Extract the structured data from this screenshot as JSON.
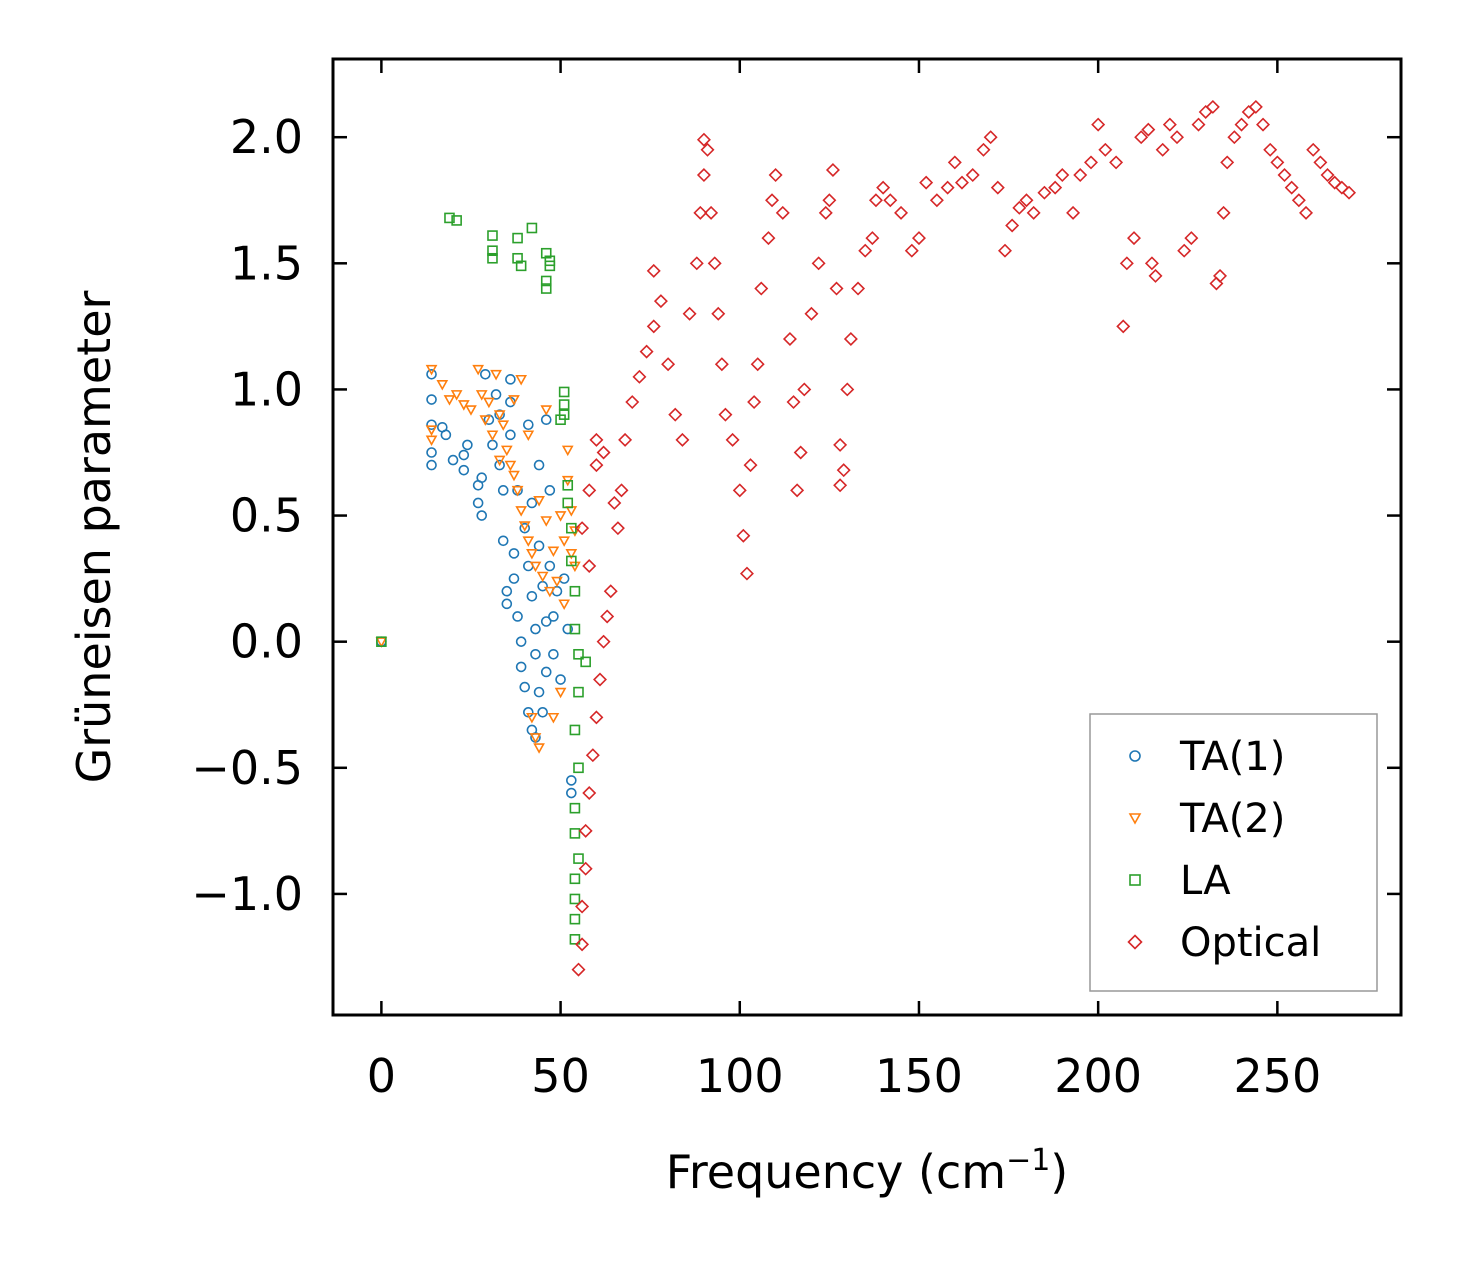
{
  "chart_data": {
    "type": "scatter",
    "title": "",
    "xlabel": "Frequency (cm",
    "xlabel_sup": "−1",
    "xlabel_close": ")",
    "ylabel": "Grüneisen parameter",
    "xlim": [
      -13.5,
      284.5
    ],
    "ylim": [
      -1.48,
      2.31
    ],
    "xticks": [
      0,
      50,
      100,
      150,
      200,
      250
    ],
    "xtick_labels": [
      "0",
      "50",
      "100",
      "150",
      "200",
      "250"
    ],
    "yticks": [
      -1.0,
      -0.5,
      0.0,
      0.5,
      1.0,
      1.5,
      2.0
    ],
    "ytick_labels": [
      "−1.0",
      "−0.5",
      "0.0",
      "0.5",
      "1.0",
      "1.5",
      "2.0"
    ],
    "grid": false,
    "legend_position": "lower-right",
    "series": [
      {
        "name": "TA(1)",
        "marker": "circle",
        "color": "#1f77b4",
        "points": [
          [
            0,
            0
          ],
          [
            14,
            1.06
          ],
          [
            14,
            0.96
          ],
          [
            14,
            0.86
          ],
          [
            14,
            0.75
          ],
          [
            14,
            0.7
          ],
          [
            17,
            0.85
          ],
          [
            18,
            0.82
          ],
          [
            20,
            0.72
          ],
          [
            23,
            0.74
          ],
          [
            23,
            0.68
          ],
          [
            24,
            0.78
          ],
          [
            27,
            0.62
          ],
          [
            27,
            0.55
          ],
          [
            28,
            0.5
          ],
          [
            28,
            0.65
          ],
          [
            29,
            1.06
          ],
          [
            30,
            0.88
          ],
          [
            31,
            0.78
          ],
          [
            32,
            0.98
          ],
          [
            33,
            0.9
          ],
          [
            33,
            0.7
          ],
          [
            34,
            0.6
          ],
          [
            34,
            0.4
          ],
          [
            35,
            0.2
          ],
          [
            35,
            0.15
          ],
          [
            36,
            1.04
          ],
          [
            36,
            0.95
          ],
          [
            36,
            0.82
          ],
          [
            37,
            0.35
          ],
          [
            37,
            0.25
          ],
          [
            38,
            0.6
          ],
          [
            38,
            0.1
          ],
          [
            39,
            0.0
          ],
          [
            39,
            -0.1
          ],
          [
            40,
            0.45
          ],
          [
            40,
            -0.18
          ],
          [
            41,
            0.86
          ],
          [
            41,
            0.3
          ],
          [
            41,
            -0.28
          ],
          [
            42,
            0.55
          ],
          [
            42,
            0.18
          ],
          [
            42,
            -0.35
          ],
          [
            43,
            0.05
          ],
          [
            43,
            -0.05
          ],
          [
            43,
            -0.38
          ],
          [
            44,
            0.7
          ],
          [
            44,
            0.38
          ],
          [
            44,
            -0.2
          ],
          [
            45,
            0.22
          ],
          [
            45,
            -0.28
          ],
          [
            46,
            0.88
          ],
          [
            46,
            0.08
          ],
          [
            46,
            -0.12
          ],
          [
            47,
            0.6
          ],
          [
            47,
            0.3
          ],
          [
            48,
            0.1
          ],
          [
            48,
            -0.05
          ],
          [
            49,
            0.2
          ],
          [
            50,
            -0.15
          ],
          [
            51,
            0.25
          ],
          [
            52,
            0.05
          ],
          [
            53,
            -0.55
          ],
          [
            53,
            -0.6
          ]
        ]
      },
      {
        "name": "TA(2)",
        "marker": "triangle-down",
        "color": "#ff7f0e",
        "points": [
          [
            0,
            0
          ],
          [
            14,
            1.08
          ],
          [
            14,
            0.84
          ],
          [
            14,
            0.8
          ],
          [
            17,
            1.02
          ],
          [
            19,
            0.96
          ],
          [
            21,
            0.98
          ],
          [
            23,
            0.94
          ],
          [
            25,
            0.92
          ],
          [
            27,
            1.08
          ],
          [
            28,
            0.98
          ],
          [
            29,
            0.88
          ],
          [
            30,
            0.95
          ],
          [
            31,
            0.82
          ],
          [
            32,
            1.06
          ],
          [
            33,
            0.9
          ],
          [
            33,
            0.72
          ],
          [
            34,
            0.86
          ],
          [
            35,
            0.76
          ],
          [
            36,
            0.7
          ],
          [
            37,
            0.96
          ],
          [
            37,
            0.66
          ],
          [
            38,
            0.6
          ],
          [
            39,
            1.04
          ],
          [
            39,
            0.52
          ],
          [
            40,
            0.46
          ],
          [
            41,
            0.82
          ],
          [
            41,
            0.4
          ],
          [
            42,
            0.35
          ],
          [
            42,
            -0.3
          ],
          [
            43,
            0.3
          ],
          [
            43,
            -0.38
          ],
          [
            44,
            0.56
          ],
          [
            44,
            -0.42
          ],
          [
            45,
            0.26
          ],
          [
            46,
            0.92
          ],
          [
            46,
            0.48
          ],
          [
            47,
            0.2
          ],
          [
            48,
            0.36
          ],
          [
            48,
            -0.3
          ],
          [
            49,
            0.24
          ],
          [
            50,
            0.5
          ],
          [
            50,
            -0.2
          ],
          [
            51,
            0.4
          ],
          [
            51,
            0.15
          ],
          [
            52,
            0.76
          ],
          [
            52,
            0.64
          ],
          [
            53,
            0.52
          ],
          [
            53,
            0.35
          ],
          [
            54,
            0.44
          ],
          [
            54,
            0.3
          ]
        ]
      },
      {
        "name": "LA",
        "marker": "square",
        "color": "#2ca02c",
        "points": [
          [
            0,
            0
          ],
          [
            19,
            1.68
          ],
          [
            21,
            1.67
          ],
          [
            31,
            1.61
          ],
          [
            31,
            1.55
          ],
          [
            31,
            1.52
          ],
          [
            38,
            1.6
          ],
          [
            38,
            1.52
          ],
          [
            39,
            1.49
          ],
          [
            42,
            1.64
          ],
          [
            46,
            1.54
          ],
          [
            47,
            1.51
          ],
          [
            47,
            1.49
          ],
          [
            46,
            1.43
          ],
          [
            46,
            1.4
          ],
          [
            51,
            0.99
          ],
          [
            51,
            0.94
          ],
          [
            51,
            0.9
          ],
          [
            50,
            0.88
          ],
          [
            52,
            0.62
          ],
          [
            52,
            0.55
          ],
          [
            53,
            0.45
          ],
          [
            53,
            0.32
          ],
          [
            54,
            0.2
          ],
          [
            54,
            0.05
          ],
          [
            55,
            -0.05
          ],
          [
            55,
            -0.2
          ],
          [
            54,
            -0.35
          ],
          [
            55,
            -0.5
          ],
          [
            54,
            -0.66
          ],
          [
            54,
            -0.76
          ],
          [
            55,
            -0.86
          ],
          [
            54,
            -0.94
          ],
          [
            54,
            -1.02
          ],
          [
            54,
            -1.1
          ],
          [
            54,
            -1.18
          ],
          [
            57,
            -0.08
          ]
        ]
      },
      {
        "name": "Optical",
        "marker": "diamond",
        "color": "#d62728",
        "points": [
          [
            55,
            -1.3
          ],
          [
            56,
            -1.2
          ],
          [
            56,
            -1.05
          ],
          [
            57,
            -0.9
          ],
          [
            57,
            -0.75
          ],
          [
            58,
            -0.6
          ],
          [
            59,
            -0.45
          ],
          [
            60,
            -0.3
          ],
          [
            61,
            -0.15
          ],
          [
            62,
            0.0
          ],
          [
            63,
            0.1
          ],
          [
            64,
            0.2
          ],
          [
            58,
            0.3
          ],
          [
            56,
            0.45
          ],
          [
            58,
            0.6
          ],
          [
            60,
            0.7
          ],
          [
            62,
            0.75
          ],
          [
            60,
            0.8
          ],
          [
            65,
            0.55
          ],
          [
            66,
            0.45
          ],
          [
            67,
            0.6
          ],
          [
            68,
            0.8
          ],
          [
            70,
            0.95
          ],
          [
            72,
            1.05
          ],
          [
            74,
            1.15
          ],
          [
            76,
            1.25
          ],
          [
            76,
            1.47
          ],
          [
            78,
            1.35
          ],
          [
            80,
            1.1
          ],
          [
            82,
            0.9
          ],
          [
            84,
            0.8
          ],
          [
            86,
            1.3
          ],
          [
            88,
            1.5
          ],
          [
            89,
            1.7
          ],
          [
            90,
            1.85
          ],
          [
            90,
            1.99
          ],
          [
            91,
            1.95
          ],
          [
            92,
            1.7
          ],
          [
            93,
            1.5
          ],
          [
            94,
            1.3
          ],
          [
            95,
            1.1
          ],
          [
            96,
            0.9
          ],
          [
            98,
            0.8
          ],
          [
            100,
            0.6
          ],
          [
            101,
            0.42
          ],
          [
            102,
            0.27
          ],
          [
            103,
            0.7
          ],
          [
            104,
            0.95
          ],
          [
            105,
            1.1
          ],
          [
            106,
            1.4
          ],
          [
            108,
            1.6
          ],
          [
            109,
            1.75
          ],
          [
            110,
            1.85
          ],
          [
            112,
            1.7
          ],
          [
            114,
            1.2
          ],
          [
            115,
            0.95
          ],
          [
            116,
            0.6
          ],
          [
            117,
            0.75
          ],
          [
            118,
            1.0
          ],
          [
            120,
            1.3
          ],
          [
            122,
            1.5
          ],
          [
            124,
            1.7
          ],
          [
            125,
            1.75
          ],
          [
            126,
            1.87
          ],
          [
            127,
            1.4
          ],
          [
            128,
            0.78
          ],
          [
            128,
            0.62
          ],
          [
            129,
            0.68
          ],
          [
            130,
            1.0
          ],
          [
            131,
            1.2
          ],
          [
            133,
            1.4
          ],
          [
            135,
            1.55
          ],
          [
            137,
            1.6
          ],
          [
            138,
            1.75
          ],
          [
            140,
            1.8
          ],
          [
            142,
            1.75
          ],
          [
            145,
            1.7
          ],
          [
            148,
            1.55
          ],
          [
            150,
            1.6
          ],
          [
            152,
            1.82
          ],
          [
            155,
            1.75
          ],
          [
            158,
            1.8
          ],
          [
            160,
            1.9
          ],
          [
            162,
            1.82
          ],
          [
            165,
            1.85
          ],
          [
            168,
            1.95
          ],
          [
            170,
            2.0
          ],
          [
            172,
            1.8
          ],
          [
            174,
            1.55
          ],
          [
            176,
            1.65
          ],
          [
            178,
            1.72
          ],
          [
            180,
            1.75
          ],
          [
            182,
            1.7
          ],
          [
            185,
            1.78
          ],
          [
            188,
            1.8
          ],
          [
            190,
            1.85
          ],
          [
            193,
            1.7
          ],
          [
            195,
            1.85
          ],
          [
            198,
            1.9
          ],
          [
            200,
            2.05
          ],
          [
            202,
            1.95
          ],
          [
            205,
            1.9
          ],
          [
            207,
            1.25
          ],
          [
            208,
            1.5
          ],
          [
            210,
            1.6
          ],
          [
            212,
            2.0
          ],
          [
            214,
            2.03
          ],
          [
            215,
            1.5
          ],
          [
            216,
            1.45
          ],
          [
            218,
            1.95
          ],
          [
            220,
            2.05
          ],
          [
            222,
            2.0
          ],
          [
            224,
            1.55
          ],
          [
            226,
            1.6
          ],
          [
            228,
            2.05
          ],
          [
            230,
            2.1
          ],
          [
            232,
            2.12
          ],
          [
            233,
            1.42
          ],
          [
            234,
            1.45
          ],
          [
            235,
            1.7
          ],
          [
            236,
            1.9
          ],
          [
            238,
            2.0
          ],
          [
            240,
            2.05
          ],
          [
            242,
            2.1
          ],
          [
            244,
            2.12
          ],
          [
            246,
            2.05
          ],
          [
            248,
            1.95
          ],
          [
            250,
            1.9
          ],
          [
            252,
            1.85
          ],
          [
            254,
            1.8
          ],
          [
            256,
            1.75
          ],
          [
            258,
            1.7
          ],
          [
            260,
            1.95
          ],
          [
            262,
            1.9
          ],
          [
            264,
            1.85
          ],
          [
            266,
            1.82
          ],
          [
            268,
            1.8
          ],
          [
            270,
            1.78
          ]
        ]
      }
    ]
  }
}
